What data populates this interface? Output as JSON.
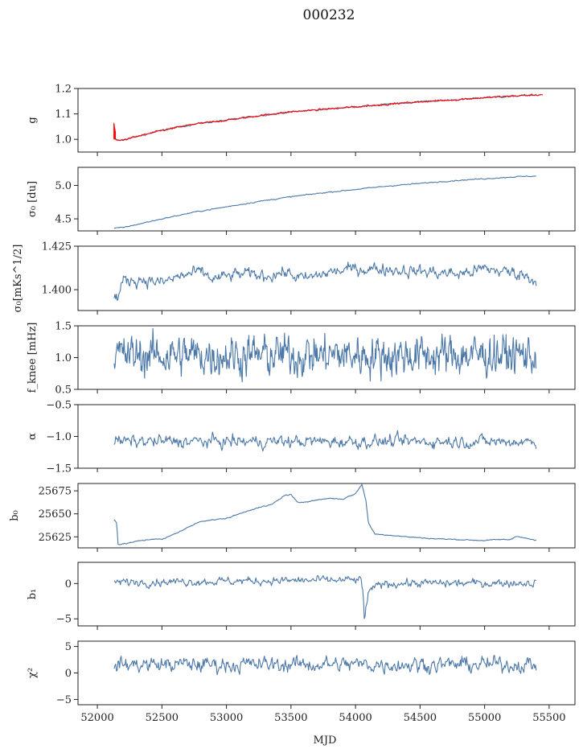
{
  "figure": {
    "title": "000232"
  },
  "chart_data": [
    {
      "id": "g",
      "type": "line",
      "ylabel": "g",
      "ylim": [
        0.95,
        1.2
      ],
      "yticks": [
        1.0,
        1.1,
        1.2
      ],
      "ytick_labels": [
        "1.0",
        "1.1",
        "1.2"
      ],
      "x_points": [
        52130,
        52140,
        52160,
        52200,
        52300,
        52500,
        52750,
        53000,
        53250,
        53500,
        53750,
        54000,
        54250,
        54500,
        54750,
        55000,
        55250,
        55400
      ],
      "y_points": [
        1.01,
        1.0,
        0.995,
        0.998,
        1.01,
        1.035,
        1.06,
        1.075,
        1.093,
        1.108,
        1.118,
        1.128,
        1.138,
        1.148,
        1.155,
        1.164,
        1.171,
        1.175
      ],
      "noise": 0.002,
      "extra_series": {
        "color": "#ff0000",
        "x_points": [
          52130,
          52135,
          52140,
          52160,
          52200,
          52300,
          52500,
          52750,
          53000,
          53250,
          53500,
          53750,
          54000,
          54250,
          54500,
          54750,
          55000,
          55250,
          55450
        ],
        "y_points": [
          1.06,
          1.01,
          1.0,
          0.995,
          0.998,
          1.01,
          1.035,
          1.06,
          1.075,
          1.093,
          1.108,
          1.118,
          1.128,
          1.138,
          1.148,
          1.155,
          1.164,
          1.171,
          1.176
        ],
        "noise": 0.002
      }
    },
    {
      "id": "sigma0_du",
      "type": "line",
      "ylabel": "σ₀ [du]",
      "ylim": [
        4.32,
        5.27
      ],
      "yticks": [
        4.5,
        5.0
      ],
      "ytick_labels": [
        "4.5",
        "5.0"
      ],
      "x_points": [
        52130,
        52200,
        52500,
        52750,
        53000,
        53250,
        53500,
        53750,
        54000,
        54250,
        54500,
        54750,
        55000,
        55250,
        55400
      ],
      "y_points": [
        4.36,
        4.37,
        4.5,
        4.6,
        4.68,
        4.76,
        4.83,
        4.89,
        4.94,
        4.99,
        5.03,
        5.07,
        5.1,
        5.13,
        5.14
      ],
      "noise": 0.005
    },
    {
      "id": "sigma0_mks",
      "type": "line",
      "ylabel": "σ₀[mKs^1/2]",
      "ylim": [
        1.388,
        1.425
      ],
      "yticks": [
        1.4,
        1.425
      ],
      "ytick_labels": [
        "1.400",
        "1.425"
      ],
      "x_points": [
        52130,
        52160,
        52200,
        52350,
        52500,
        52650,
        52800,
        52900,
        53100,
        53300,
        53450,
        53600,
        53800,
        54000,
        54200,
        54400,
        54600,
        54800,
        55000,
        55200,
        55300,
        55400
      ],
      "y_points": [
        1.395,
        1.396,
        1.405,
        1.406,
        1.404,
        1.408,
        1.41,
        1.406,
        1.409,
        1.408,
        1.41,
        1.406,
        1.41,
        1.412,
        1.412,
        1.411,
        1.41,
        1.409,
        1.412,
        1.41,
        1.409,
        1.405
      ],
      "noise": 0.0022
    },
    {
      "id": "fknee",
      "type": "line",
      "ylabel": "f_knee [mHz]",
      "ylim": [
        0.5,
        1.5
      ],
      "yticks": [
        0.5,
        1.0,
        1.5
      ],
      "ytick_labels": [
        "0.5",
        "1.0",
        "1.5"
      ],
      "x_points": [
        52130,
        55400
      ],
      "y_points": [
        1.04,
        1.04
      ],
      "noise": 0.19
    },
    {
      "id": "alpha",
      "type": "line",
      "ylabel": "α",
      "ylim": [
        -1.5,
        -0.5
      ],
      "yticks": [
        -1.5,
        -1.0,
        -0.5
      ],
      "ytick_labels": [
        "−1.5",
        "−1.0",
        "−0.5"
      ],
      "x_points": [
        52130,
        55400
      ],
      "y_points": [
        -1.08,
        -1.08
      ],
      "noise": 0.06
    },
    {
      "id": "b0",
      "type": "line",
      "ylabel": "b₀",
      "ylim": [
        25613,
        25683
      ],
      "yticks": [
        25625,
        25650,
        25675
      ],
      "ytick_labels": [
        "25625",
        "25650",
        "25675"
      ],
      "x_points": [
        52130,
        52150,
        52160,
        52200,
        52300,
        52450,
        52500,
        52550,
        52700,
        52800,
        53000,
        53200,
        53350,
        53450,
        53500,
        53550,
        53800,
        53900,
        54000,
        54050,
        54080,
        54100,
        54150,
        54250,
        54400,
        54600,
        54800,
        55000,
        55100,
        55200,
        55250,
        55300,
        55400
      ],
      "y_points": [
        25644,
        25640,
        25617,
        25617,
        25620,
        25623,
        25622,
        25625,
        25635,
        25642,
        25645,
        25655,
        25660,
        25670,
        25671,
        25662,
        25667,
        25666,
        25672,
        25682,
        25665,
        25640,
        25628,
        25627,
        25625,
        25623,
        25622,
        25621,
        25622,
        25622,
        25626,
        25624,
        25621
      ],
      "noise": 0.35
    },
    {
      "id": "b1",
      "type": "line",
      "ylabel": "b₁",
      "ylim": [
        -6.0,
        3.0
      ],
      "yticks": [
        -5,
        0
      ],
      "ytick_labels": [
        "−5",
        "0"
      ],
      "x_points": [
        52130,
        54040,
        54060,
        54070,
        54080,
        54100,
        54150,
        54200,
        55400
      ],
      "y_points": [
        0.2,
        0.5,
        -1.5,
        -5.3,
        -3.5,
        -1.5,
        -0.5,
        0.0,
        0.1
      ],
      "noise": 0.35
    },
    {
      "id": "chi2",
      "type": "line",
      "ylabel": "χ²",
      "xlabel": "MJD",
      "ylim": [
        -6.0,
        6.0
      ],
      "yticks": [
        -5,
        0,
        5
      ],
      "ytick_labels": [
        "−5",
        "0",
        "5"
      ],
      "xticks": [
        52000,
        52500,
        53000,
        53500,
        54000,
        54500,
        55000,
        55500
      ],
      "xtick_labels": [
        "52000",
        "52500",
        "53000",
        "53500",
        "54000",
        "54500",
        "55000",
        "55500"
      ],
      "x_points": [
        52130,
        55400
      ],
      "y_points": [
        1.6,
        1.6
      ],
      "noise": 0.9
    }
  ],
  "x_axis": {
    "label": "MJD",
    "xlim": [
      51850,
      55700
    ]
  },
  "colors": {
    "series": "#4c78a8",
    "highlight": "#ff0000",
    "axes": "#222222"
  }
}
